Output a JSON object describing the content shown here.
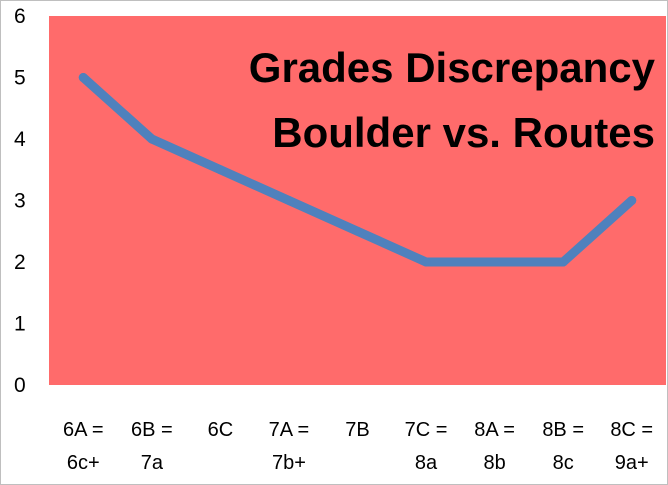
{
  "chart_data": {
    "type": "line",
    "title_lines": [
      "Grades Discrepancy",
      "Boulder vs. Routes"
    ],
    "categories": [
      [
        "6A =",
        "6c+"
      ],
      [
        "6B =",
        "7a"
      ],
      [
        "6C"
      ],
      [
        "7A =",
        "7b+"
      ],
      [
        "7B"
      ],
      [
        "7C =",
        "8a"
      ],
      [
        "8A =",
        "8b"
      ],
      [
        "8B =",
        "8c"
      ],
      [
        "8C =",
        "9a+"
      ]
    ],
    "series": [
      {
        "values": [
          5,
          4,
          3.5,
          3,
          2.5,
          2,
          2,
          2,
          3
        ]
      }
    ],
    "ylim": [
      0,
      6
    ],
    "yticks": [
      0,
      1,
      2,
      3,
      4,
      5,
      6
    ],
    "grid": false,
    "plot_background": "#FF6B6B",
    "line_color": "#4F81BD"
  }
}
